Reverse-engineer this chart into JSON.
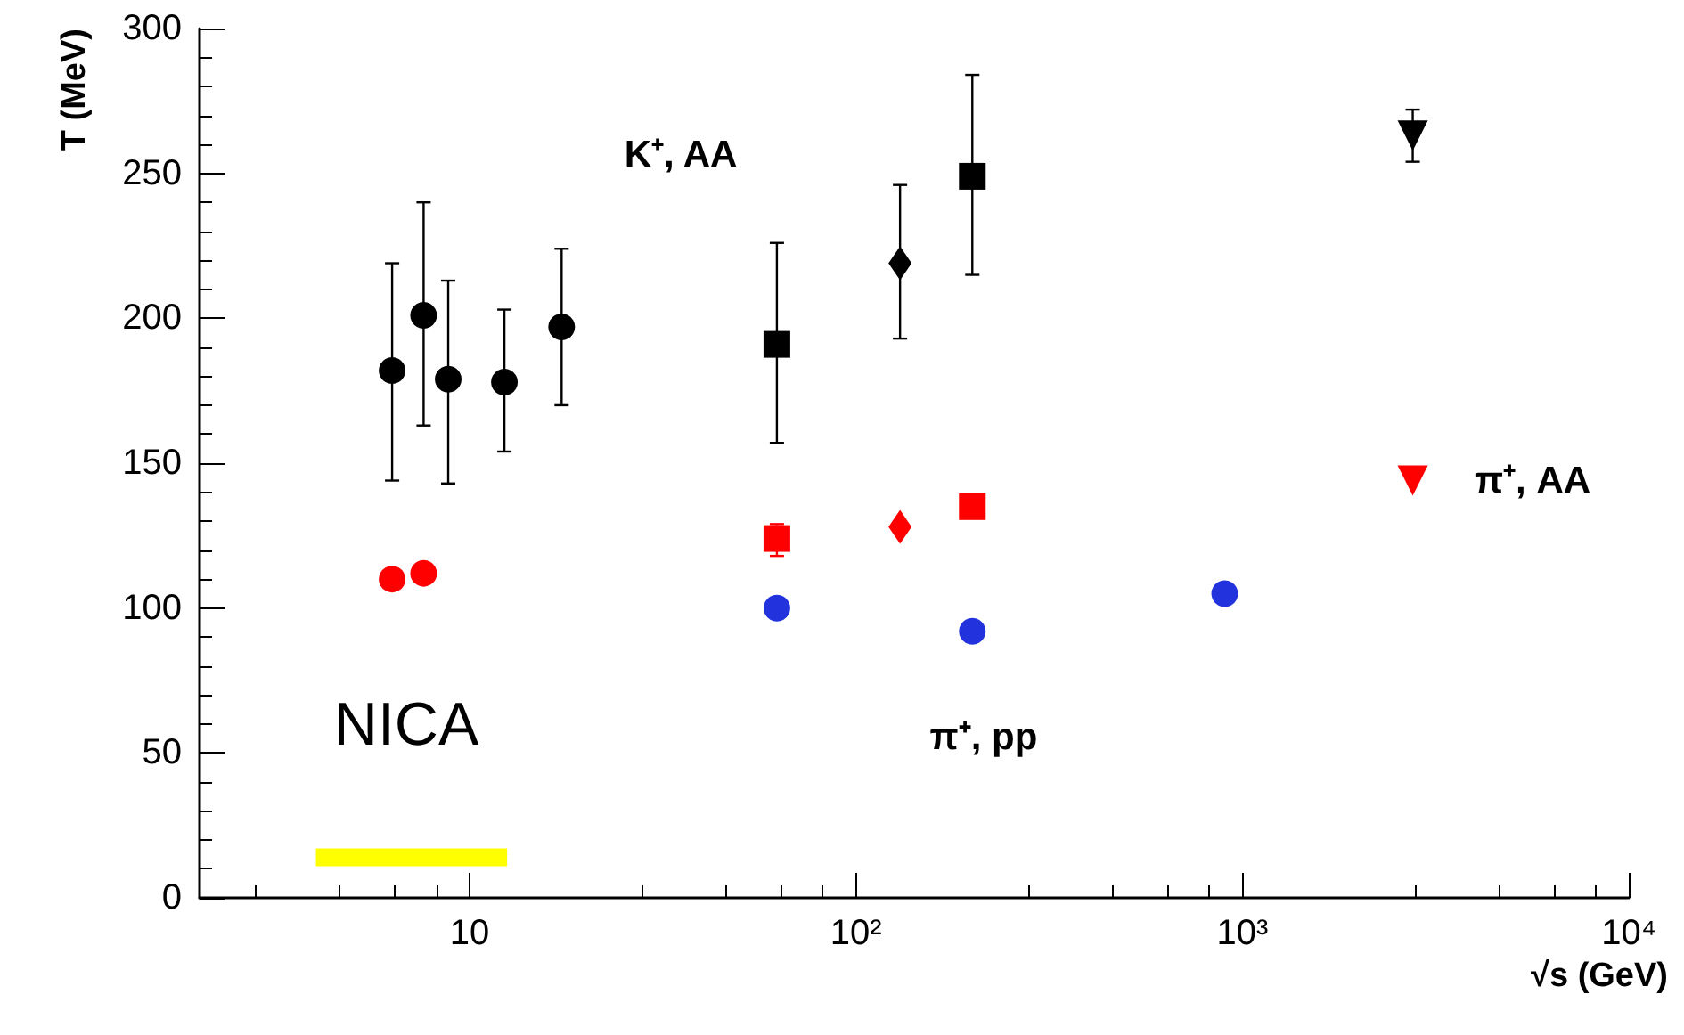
{
  "chart_data": {
    "type": "scatter",
    "xlabel": "√s (GeV)",
    "ylabel": "T (MeV)",
    "log": "x",
    "grid": false,
    "xlim": [
      2,
      10000
    ],
    "xticks": [
      10,
      {
        "value": 100,
        "label": "10²"
      },
      {
        "value": 1000,
        "label": "10³"
      },
      {
        "value": 10000,
        "label": "10⁴"
      }
    ],
    "ylim": [
      0,
      300
    ],
    "yticks": [
      0,
      50,
      100,
      150,
      200,
      250,
      300
    ],
    "series": [
      {
        "color": "#000000",
        "marker": "circle",
        "x": [
          6.3,
          7.6,
          8.8,
          12.3,
          17.3
        ],
        "values": [
          182,
          201,
          179,
          178,
          197
        ],
        "errors": [
          [
            144,
            219
          ],
          [
            163,
            240
          ],
          [
            143,
            213
          ],
          [
            154,
            203
          ],
          [
            170,
            224
          ]
        ]
      },
      {
        "color": "#000000",
        "marker": "square",
        "x": [
          62.4,
          200
        ],
        "values": [
          191,
          249
        ],
        "errors": [
          [
            157,
            226
          ],
          [
            215,
            284
          ]
        ]
      },
      {
        "color": "#000000",
        "marker": "diamond",
        "x": [
          130
        ],
        "values": [
          219
        ],
        "errors": [
          [
            193,
            246
          ]
        ]
      },
      {
        "color": "#000000",
        "marker": "triangle",
        "x": [
          2760
        ],
        "values": [
          263
        ],
        "errors": [
          [
            254,
            272
          ]
        ]
      },
      {
        "color": "#ff0000",
        "marker": "circle",
        "x": [
          6.3,
          7.6
        ],
        "values": [
          110,
          112
        ]
      },
      {
        "color": "#ff0000",
        "marker": "square",
        "x": [
          62.4,
          200
        ],
        "values": [
          124,
          135
        ],
        "errors": [
          [
            118,
            129
          ],
          null
        ]
      },
      {
        "color": "#ff0000",
        "marker": "diamond",
        "x": [
          130
        ],
        "values": [
          128
        ]
      },
      {
        "color": "#ff0000",
        "marker": "triangle",
        "x": [
          2760
        ],
        "values": [
          144
        ]
      },
      {
        "color": "#2233dd",
        "marker": "circle",
        "x": [
          62.4,
          200,
          900
        ],
        "values": [
          100,
          92,
          105
        ]
      },
      {
        "type": "line",
        "color": "#ffff00",
        "marker": "none",
        "x": [
          4,
          12.5
        ],
        "values": [
          14,
          14
        ]
      }
    ],
    "annotations": [
      "K⁺, AA",
      "π⁺, AA",
      "π⁺, pp",
      "NICA"
    ]
  }
}
